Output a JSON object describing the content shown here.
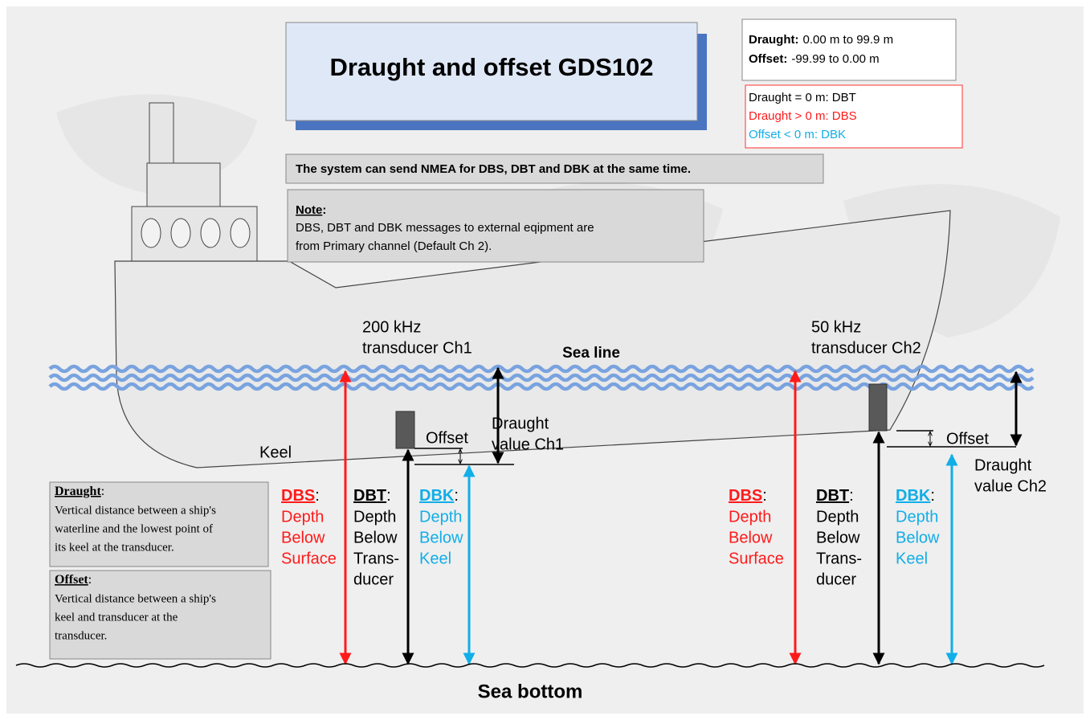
{
  "title": "Draught and offset GDS102",
  "ranges": [
    {
      "label": "Draught:",
      "text": "0.00 m to 99.9 m"
    },
    {
      "label": "Offset:",
      "text": "-99.99 to 0.00 m"
    }
  ],
  "rules": [
    "Draught = 0 m: DBT",
    "Draught > 0 m: DBS",
    "Offset < 0 m: DBK"
  ],
  "statement": "The system can send NMEA for DBS, DBT and DBK at the same time.",
  "note": {
    "heading": "Note",
    "sep": ":",
    "lines": [
      "DBS, DBT and DBK messages to external eqipment are",
      "from Primary channel (Default Ch 2)."
    ]
  },
  "labels": {
    "sea_line": "Sea line",
    "keel": "Keel",
    "sea_bottom": "Sea bottom"
  },
  "channels": [
    {
      "transducer": [
        "200 kHz",
        "transducer Ch1"
      ],
      "offset": "Offset",
      "draught": [
        "Draught",
        "value Ch1"
      ],
      "measures": [
        {
          "abbr": "DBS",
          "sep": ":",
          "lines": [
            "Depth",
            "Below",
            "Surface"
          ]
        },
        {
          "abbr": "DBT",
          "sep": ":",
          "lines": [
            "Depth",
            "Below",
            "Trans-",
            "ducer"
          ]
        },
        {
          "abbr": "DBK",
          "sep": ":",
          "lines": [
            "Depth",
            "Below",
            "Keel"
          ]
        }
      ]
    },
    {
      "transducer": [
        "50 kHz",
        "transducer Ch2"
      ],
      "offset": "Offset",
      "draught": [
        "Draught",
        "value Ch2"
      ],
      "measures": [
        {
          "abbr": "DBS",
          "sep": ":",
          "lines": [
            "Depth",
            "Below",
            "Surface"
          ]
        },
        {
          "abbr": "DBT",
          "sep": ":",
          "lines": [
            "Depth",
            "Below",
            "Trans-",
            "ducer"
          ]
        },
        {
          "abbr": "DBK",
          "sep": ":",
          "lines": [
            "Depth",
            "Below",
            "Keel"
          ]
        }
      ]
    }
  ],
  "definitions": [
    {
      "term": "Draught",
      "sep": ":",
      "lines": [
        "Vertical distance between a ship's",
        "waterline and the lowest point of",
        "its keel at the transducer."
      ]
    },
    {
      "term": "Offset",
      "sep": ":",
      "lines": [
        "Vertical distance between a ship's",
        "keel and transducer at the",
        "transducer."
      ]
    }
  ]
}
